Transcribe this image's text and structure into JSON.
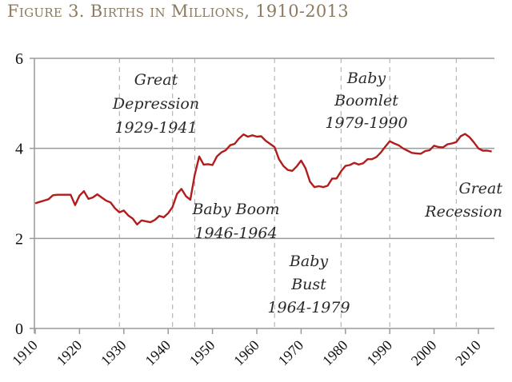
{
  "title": "Figure 3. Births in Millions, 1910-2013",
  "chart_data": {
    "type": "line",
    "title": "Figure 3. Births in Millions, 1910-2013",
    "xlabel": "",
    "ylabel": "",
    "xlim": [
      1910,
      2013
    ],
    "ylim": [
      0,
      6
    ],
    "yticks": [
      0,
      2,
      4,
      6
    ],
    "xticks": [
      1910,
      1920,
      1930,
      1940,
      1950,
      1960,
      1970,
      1980,
      1990,
      2000,
      2010
    ],
    "grid": "horizontal",
    "line_color": "#b11c1c",
    "series": [
      {
        "name": "Births (millions)",
        "x": [
          1910,
          1911,
          1912,
          1913,
          1914,
          1915,
          1916,
          1917,
          1918,
          1919,
          1920,
          1921,
          1922,
          1923,
          1924,
          1925,
          1926,
          1927,
          1928,
          1929,
          1930,
          1931,
          1932,
          1933,
          1934,
          1935,
          1936,
          1937,
          1938,
          1939,
          1940,
          1941,
          1942,
          1943,
          1944,
          1945,
          1946,
          1947,
          1948,
          1949,
          1950,
          1951,
          1952,
          1953,
          1954,
          1955,
          1956,
          1957,
          1958,
          1959,
          1960,
          1961,
          1962,
          1963,
          1964,
          1965,
          1966,
          1967,
          1968,
          1969,
          1970,
          1971,
          1972,
          1973,
          1974,
          1975,
          1976,
          1977,
          1978,
          1979,
          1980,
          1981,
          1982,
          1983,
          1984,
          1985,
          1986,
          1987,
          1988,
          1989,
          1990,
          1991,
          1992,
          1993,
          1994,
          1995,
          1996,
          1997,
          1998,
          1999,
          2000,
          2001,
          2002,
          2003,
          2004,
          2005,
          2006,
          2007,
          2008,
          2009,
          2010,
          2011,
          2012,
          2013
        ],
        "values": [
          2.78,
          2.81,
          2.84,
          2.87,
          2.96,
          2.97,
          2.97,
          2.97,
          2.97,
          2.74,
          2.95,
          3.05,
          2.88,
          2.91,
          2.98,
          2.91,
          2.84,
          2.8,
          2.67,
          2.58,
          2.62,
          2.51,
          2.44,
          2.31,
          2.4,
          2.38,
          2.36,
          2.41,
          2.5,
          2.47,
          2.56,
          2.7,
          2.99,
          3.1,
          2.94,
          2.86,
          3.41,
          3.82,
          3.64,
          3.65,
          3.63,
          3.82,
          3.91,
          3.96,
          4.07,
          4.1,
          4.22,
          4.31,
          4.26,
          4.29,
          4.26,
          4.27,
          4.17,
          4.1,
          4.03,
          3.76,
          3.61,
          3.52,
          3.5,
          3.6,
          3.73,
          3.56,
          3.26,
          3.14,
          3.16,
          3.14,
          3.17,
          3.33,
          3.33,
          3.49,
          3.61,
          3.63,
          3.68,
          3.64,
          3.67,
          3.76,
          3.76,
          3.81,
          3.91,
          4.04,
          4.16,
          4.11,
          4.07,
          4.0,
          3.95,
          3.9,
          3.89,
          3.88,
          3.94,
          3.96,
          4.06,
          4.03,
          4.02,
          4.09,
          4.11,
          4.14,
          4.27,
          4.32,
          4.25,
          4.13,
          4.0,
          3.95,
          3.95,
          3.93
        ]
      }
    ],
    "reference_lines": [
      1929,
      1941,
      1946,
      1964,
      1979,
      1990,
      2005
    ],
    "annotations": [
      {
        "id": "great-depression",
        "lines": [
          "Great",
          "Depression",
          "1929-1941"
        ]
      },
      {
        "id": "baby-boom",
        "lines": [
          "Baby Boom",
          "1946-1964"
        ]
      },
      {
        "id": "baby-bust",
        "lines": [
          "Baby",
          "Bust",
          "1964-1979"
        ]
      },
      {
        "id": "baby-boomlet",
        "lines": [
          "Baby",
          "Boomlet",
          "1979-1990"
        ]
      },
      {
        "id": "great-recession",
        "lines": [
          "Great",
          "Recession"
        ]
      }
    ]
  }
}
